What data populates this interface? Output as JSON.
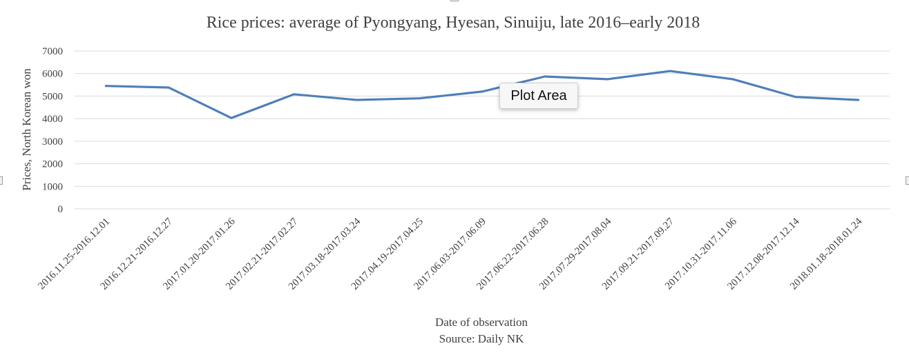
{
  "chart_data": {
    "type": "line",
    "title": "Rice prices: average of Pyongyang, Hyesan, Sinuiju, late 2016–early 2018",
    "xlabel": "Date of observation",
    "source": "Source: Daily NK",
    "ylabel": "Prices, North Korean won",
    "ylim": [
      0,
      7000
    ],
    "yticks": [
      "0",
      "1000",
      "2000",
      "3000",
      "4000",
      "5000",
      "6000",
      "7000"
    ],
    "grid": true,
    "legend": "none",
    "categories": [
      "2016.11.25-2016.12.01",
      "2016.12.21-2016.12.27",
      "2017.01.20-2017.01.26",
      "2017.02.21-2017.02.27",
      "2017.03.18-2017.03.24",
      "2017.04.19-2017.04.25",
      "2017.06.03-2017.06.09",
      "2017.06.22-2017.06.28",
      "2017.07.29-2017.08.04",
      "2017.09.21-2017.09.27",
      "2017.10.31-2017.11.06",
      "2017.12.08-2017.12.14",
      "2018.01.18-2018.01.24"
    ],
    "series": [
      {
        "values": [
          5450,
          5380,
          4030,
          5080,
          4830,
          4900,
          5200,
          5870,
          5750,
          6110,
          5750,
          4960,
          4830
        ],
        "color": "#4f7fb9"
      }
    ]
  },
  "tooltip": {
    "label": "Plot Area"
  },
  "colors": {
    "gridline": "#d9d9d9",
    "text": "#404040",
    "line": "#4f7fb9"
  }
}
